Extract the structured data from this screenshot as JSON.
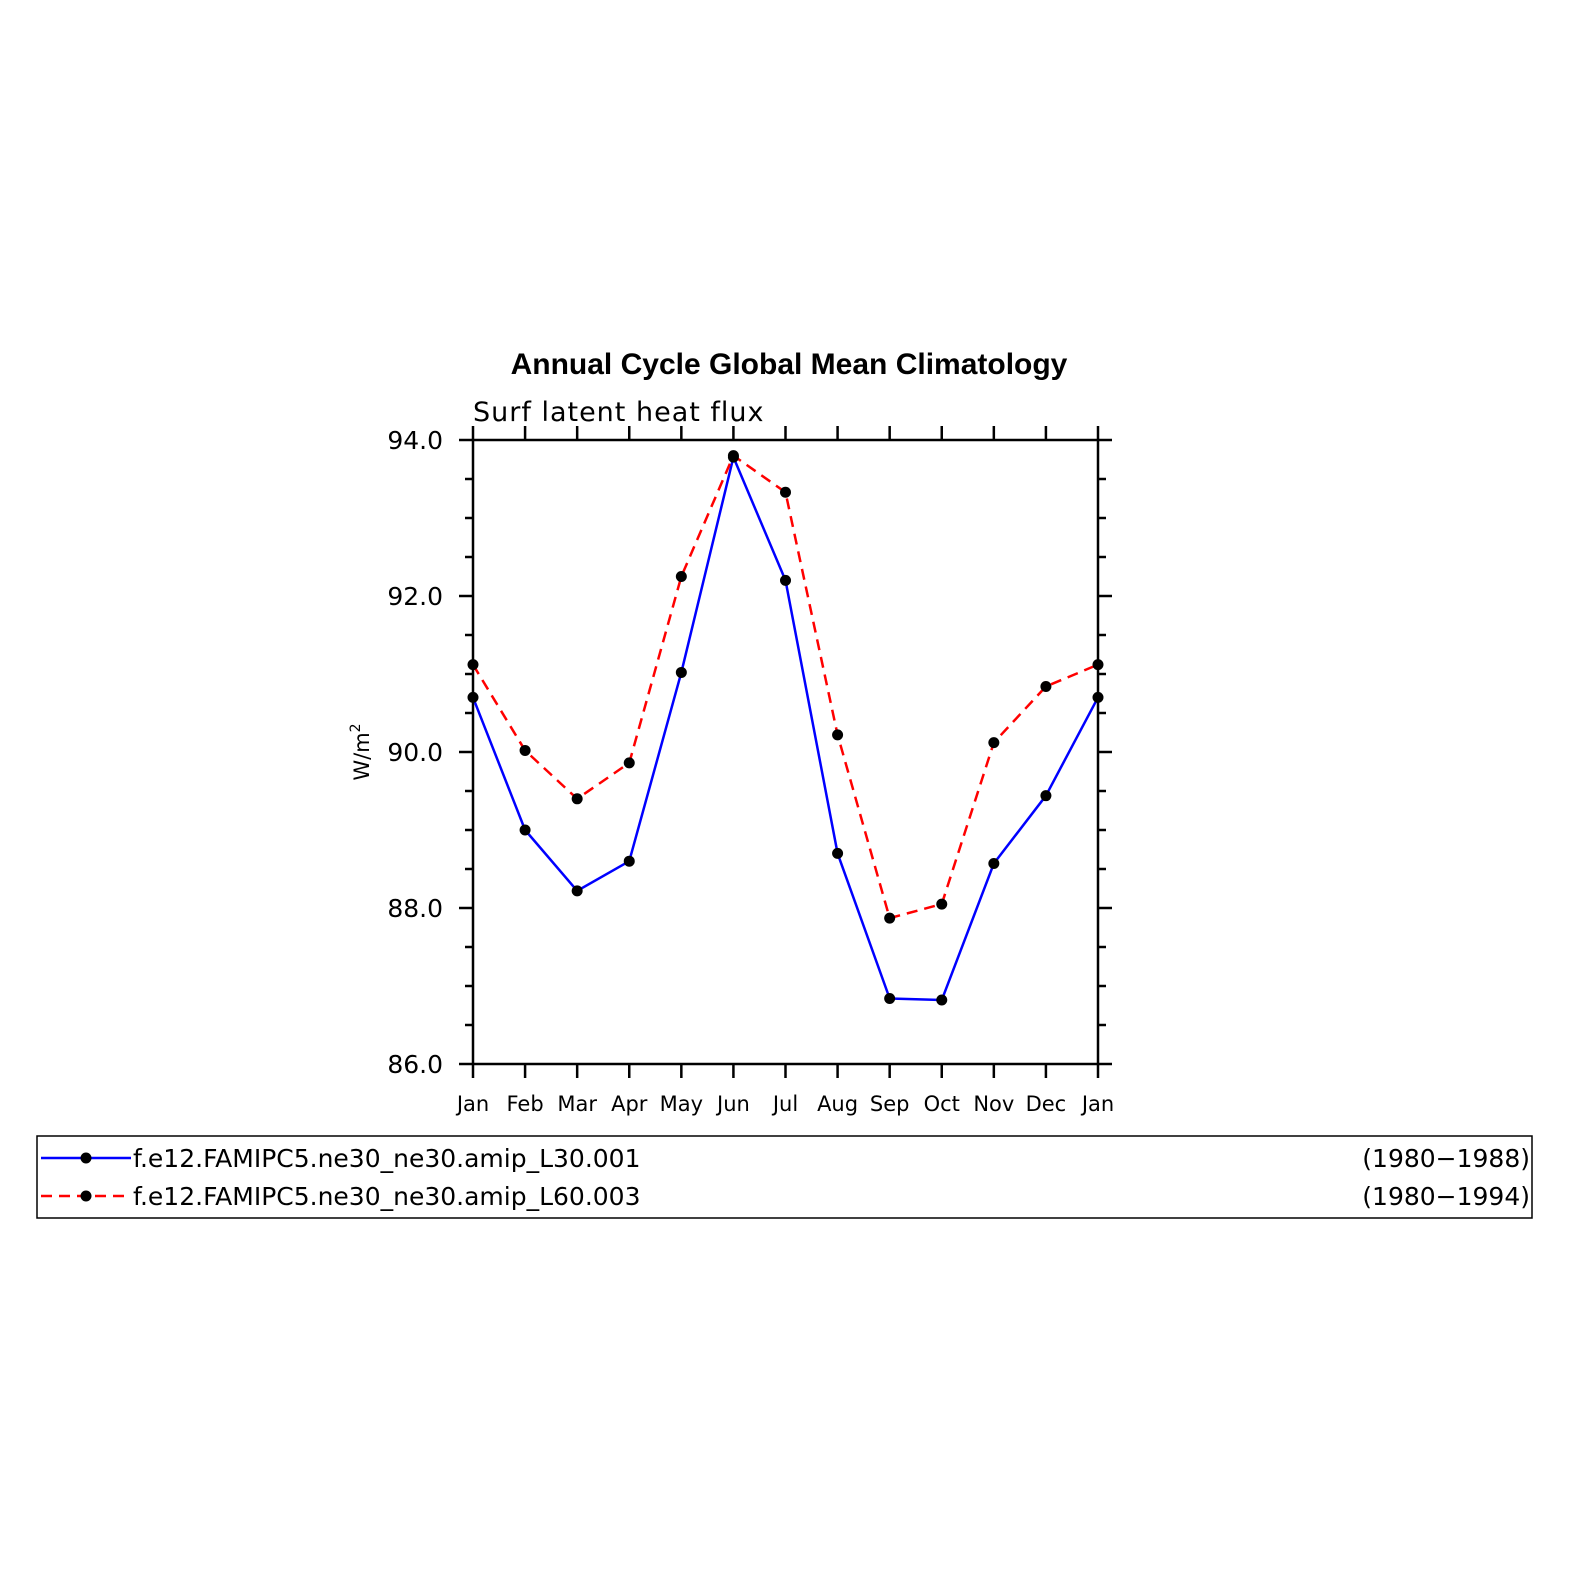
{
  "chart_data": {
    "type": "line",
    "title": "Annual Cycle Global Mean Climatology",
    "subtitle": "Surf latent heat flux",
    "ylabel": "W/m",
    "ylabel_superscript": "2",
    "categories": [
      "Jan",
      "Feb",
      "Mar",
      "Apr",
      "May",
      "Jun",
      "Jul",
      "Aug",
      "Sep",
      "Oct",
      "Nov",
      "Dec",
      "Jan"
    ],
    "ylim": [
      86.0,
      94.0
    ],
    "yticks": [
      "86.0",
      "88.0",
      "90.0",
      "92.0",
      "94.0"
    ],
    "grid": false,
    "legend_position": "bottom",
    "series": [
      {
        "name": "f.e12.FAMIPC5.ne30_ne30.amip_L30.001",
        "period": "(1980−1988)",
        "color": "#0000ff",
        "line_style": "solid",
        "marker": "filled-circle",
        "values": [
          90.7,
          89.0,
          88.22,
          88.6,
          91.02,
          93.78,
          92.2,
          88.7,
          86.84,
          86.82,
          88.57,
          89.44,
          90.7
        ]
      },
      {
        "name": "f.e12.FAMIPC5.ne30_ne30.amip_L60.003",
        "period": "(1980−1994)",
        "color": "#ff0000",
        "line_style": "dashed",
        "marker": "filled-circle",
        "values": [
          91.12,
          90.02,
          89.4,
          89.86,
          92.25,
          93.8,
          93.33,
          90.22,
          87.87,
          88.05,
          90.12,
          90.84,
          91.12
        ]
      }
    ]
  }
}
